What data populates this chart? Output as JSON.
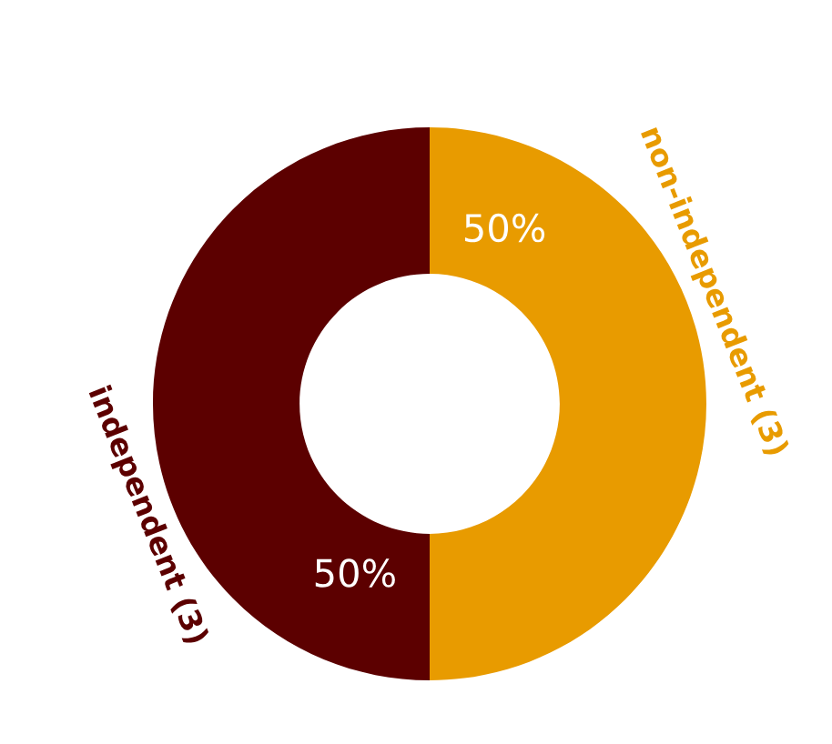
{
  "chart_data": {
    "type": "donut",
    "categories": [
      "non-independent (3)",
      "independent (3)"
    ],
    "values": [
      50,
      50
    ],
    "colors": [
      "#e89b00",
      "#5c0000"
    ],
    "value_labels": [
      "50%",
      "50%"
    ],
    "legend": false
  }
}
